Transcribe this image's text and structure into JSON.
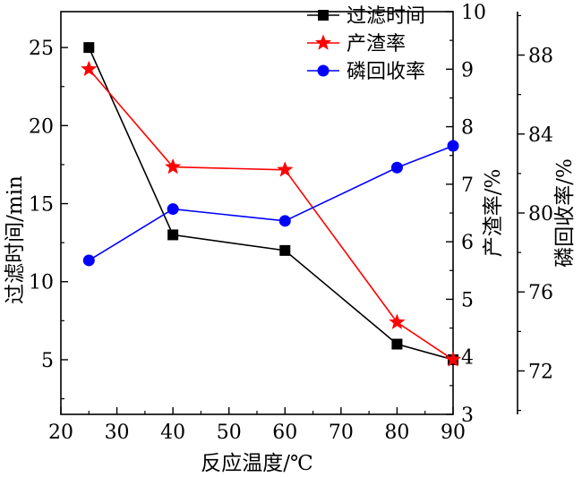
{
  "chart_data": {
    "type": "line",
    "xlabel": "反应温度/℃",
    "x_ticks": [
      20,
      30,
      40,
      50,
      60,
      70,
      80,
      90
    ],
    "xlim": [
      20,
      90
    ],
    "axes": {
      "left": {
        "label": "过滤时间/min",
        "ticks": [
          5,
          10,
          15,
          20,
          25
        ],
        "range": [
          1.5,
          27.3
        ]
      },
      "right1": {
        "label": "产渣率/%",
        "ticks": [
          3,
          4,
          5,
          6,
          7,
          8,
          9,
          10
        ],
        "range": [
          3,
          10
        ]
      },
      "right2": {
        "label": "磷回收率/%",
        "ticks": [
          72,
          76,
          80,
          84,
          88
        ],
        "range": [
          69.8,
          90.2
        ]
      }
    },
    "series": [
      {
        "name": "过滤时间",
        "axis": "left",
        "marker": "square",
        "color": "#000000",
        "x": [
          25,
          40,
          60,
          80,
          90
        ],
        "y": [
          25.0,
          13.0,
          12.0,
          6.0,
          5.0
        ]
      },
      {
        "name": "产渣率",
        "axis": "right1",
        "marker": "star",
        "color": "#ff0000",
        "x": [
          25,
          40,
          60,
          80,
          90
        ],
        "y": [
          9.0,
          7.3,
          7.25,
          4.6,
          3.95
        ]
      },
      {
        "name": "磷回收率",
        "axis": "right2",
        "marker": "circle",
        "color": "#0000ff",
        "x": [
          25,
          40,
          60,
          80,
          90
        ],
        "y": [
          77.6,
          80.2,
          79.6,
          82.3,
          83.4
        ]
      }
    ],
    "legend_position": "top-right",
    "grid": false
  }
}
